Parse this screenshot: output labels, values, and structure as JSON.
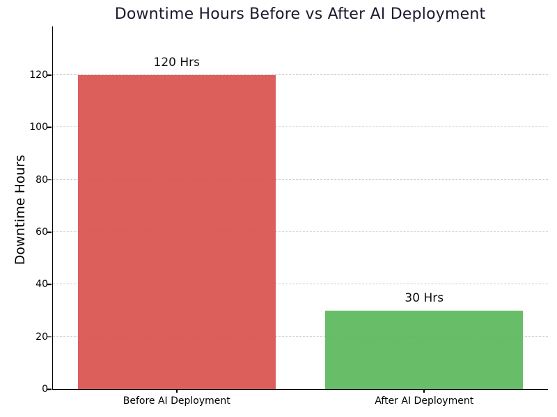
{
  "chart_data": {
    "type": "bar",
    "title": "Downtime Hours Before vs After AI Deployment",
    "xlabel": "",
    "ylabel": "Downtime Hours",
    "categories": [
      "Before AI Deployment",
      "After AI Deployment"
    ],
    "values": [
      120,
      30
    ],
    "bar_labels": [
      "120 Hrs",
      "30 Hrs"
    ],
    "bar_colors": [
      "#d9534f",
      "#5cb85c"
    ],
    "yticks": [
      0,
      20,
      40,
      60,
      80,
      100,
      120
    ],
    "ylim": [
      0,
      138.6
    ],
    "bar_relative_width": 0.8,
    "grid": "horizontal-dashed",
    "grid_color": "#c9c9c9",
    "legend_position": "none",
    "title_color": "#1a1a2e",
    "axis_color": "#000000",
    "background_color": "#ffffff"
  }
}
